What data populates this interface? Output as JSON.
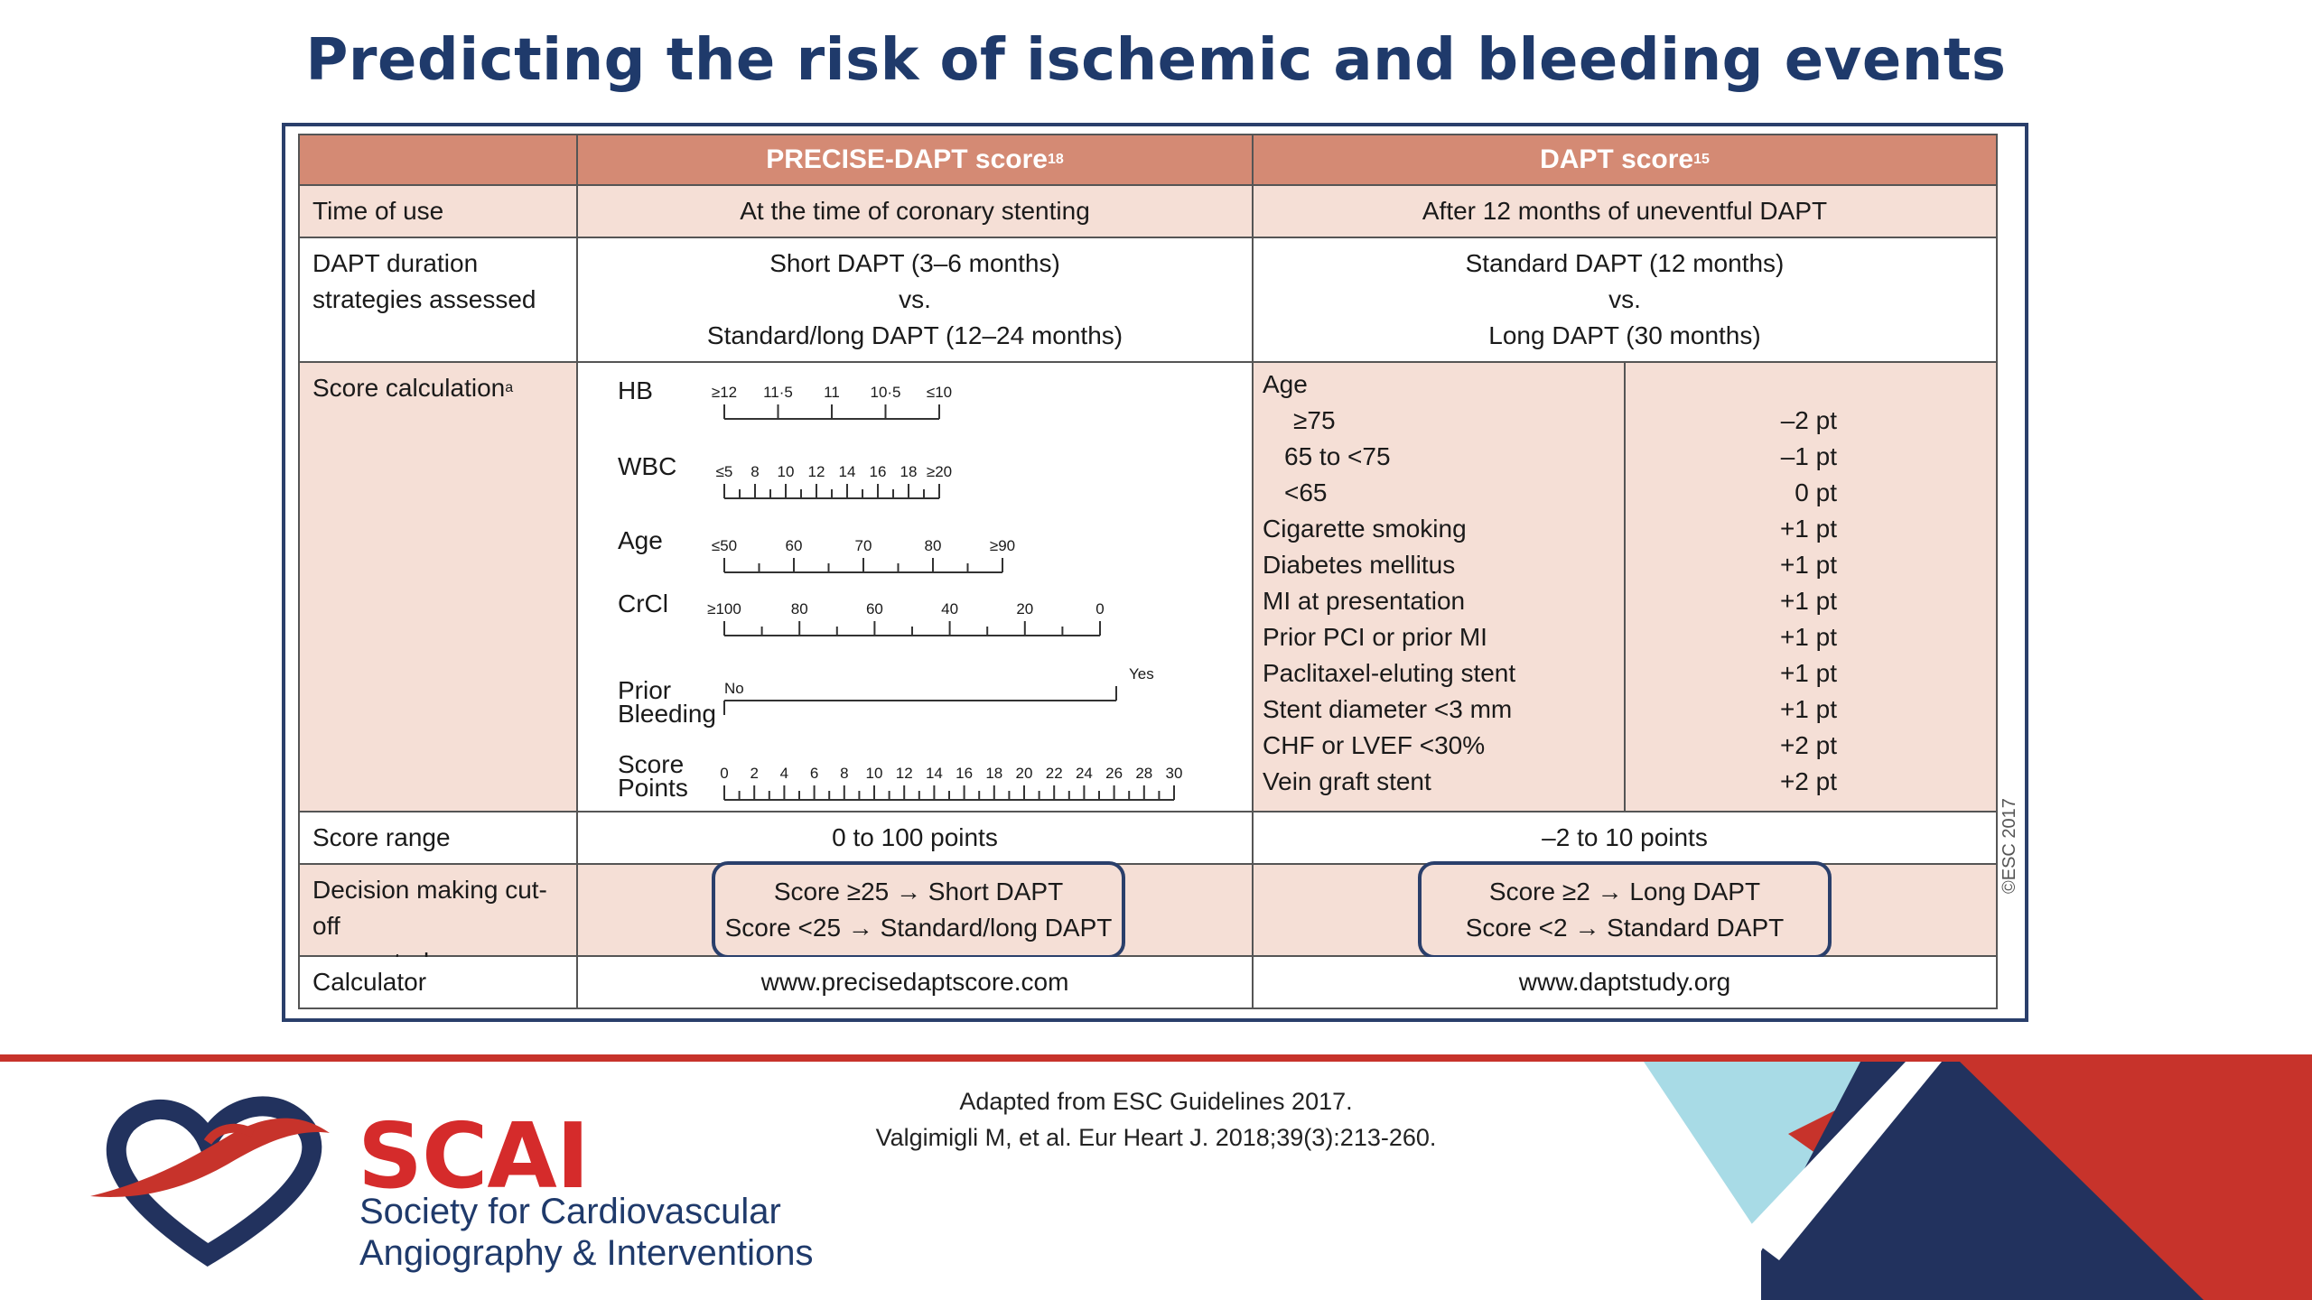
{
  "title": "Predicting the risk of ischemic and bleeding events",
  "table": {
    "header": {
      "col2": "PRECISE-DAPT score",
      "col2_sup": "18",
      "col3": "DAPT score",
      "col3_sup": "15"
    },
    "time_of_use": {
      "label": "Time of use",
      "precise": "At the time of coronary stenting",
      "dapt": "After 12 months of uneventful DAPT"
    },
    "duration": {
      "label_line1": "DAPT duration",
      "label_line2": "strategies assessed",
      "precise_line1": "Short DAPT (3–6 months)",
      "precise_line2": "vs.",
      "precise_line3": "Standard/long DAPT (12–24 months)",
      "dapt_line1": "Standard DAPT (12 months)",
      "dapt_line2": "vs.",
      "dapt_line3": "Long DAPT (30 months)"
    },
    "score_calc": {
      "label": "Score calculation",
      "label_sup": "a",
      "nomogram": {
        "hb_label": "HB",
        "hb_ticks": [
          "≥12",
          "11·5",
          "11",
          "10·5",
          "≤10"
        ],
        "wbc_label": "WBC",
        "wbc_ticks": [
          "≤5",
          "8",
          "10",
          "12",
          "14",
          "16",
          "18",
          "≥20"
        ],
        "age_label": "Age",
        "age_ticks": [
          "≤50",
          "60",
          "70",
          "80",
          "≥90"
        ],
        "crcl_label": "CrCl",
        "crcl_ticks": [
          "≥100",
          "80",
          "60",
          "40",
          "20",
          "0"
        ],
        "bleed_label_1": "Prior",
        "bleed_label_2": "Bleeding",
        "bleed_no": "No",
        "bleed_yes": "Yes",
        "points_label_1": "Score",
        "points_label_2": "Points",
        "points_ticks": [
          "0",
          "2",
          "4",
          "6",
          "8",
          "10",
          "12",
          "14",
          "16",
          "18",
          "20",
          "22",
          "24",
          "26",
          "28",
          "30"
        ]
      },
      "dapt_items": [
        {
          "label": "Age",
          "points": ""
        },
        {
          "label": "≥75",
          "points": "–2 pt"
        },
        {
          "label": "65 to <75",
          "points": "–1 pt"
        },
        {
          "label": "<65",
          "points": "0 pt"
        },
        {
          "label": "Cigarette smoking",
          "points": "+1 pt"
        },
        {
          "label": "Diabetes mellitus",
          "points": "+1 pt"
        },
        {
          "label": "MI at presentation",
          "points": "+1 pt"
        },
        {
          "label": "Prior PCI or prior MI",
          "points": "+1 pt"
        },
        {
          "label": "Paclitaxel-eluting stent",
          "points": "+1 pt"
        },
        {
          "label": "Stent diameter <3 mm",
          "points": "+1 pt"
        },
        {
          "label": "CHF or LVEF <30%",
          "points": "+2 pt"
        },
        {
          "label": "Vein graft stent",
          "points": "+2 pt"
        }
      ]
    },
    "score_range": {
      "label": "Score range",
      "precise": "0 to 100 points",
      "dapt": "–2 to 10 points"
    },
    "cutoff": {
      "label_line1": "Decision making cut-off",
      "label_line2": "suggested",
      "precise_line1": "Score ≥25 → Short DAPT",
      "precise_line2": "Score <25 → Standard/long DAPT",
      "dapt_line1": "Score ≥2 → Long DAPT",
      "dapt_line2": "Score <2 → Standard DAPT"
    },
    "calculator": {
      "label": "Calculator",
      "precise": "www.precisedaptscore.com",
      "dapt": "www.daptstudy.org"
    },
    "copyright": "©ESC 2017"
  },
  "citation": {
    "line1": "Adapted from ESC Guidelines 2017.",
    "line2": "Valgimigli M, et al. Eur Heart J. 2018;39(3):213-260."
  },
  "logo": {
    "name": "SCAI",
    "line1": "Society for Cardiovascular",
    "line2": "Angiography & Interventions"
  },
  "colors": {
    "title": "#1f3a6b",
    "header_bg": "#d48a74",
    "pink_row": "#f5dfd6",
    "brand_red": "#c7332b",
    "brand_navy": "#22325e",
    "brand_light_blue": "#a8dbe6"
  }
}
